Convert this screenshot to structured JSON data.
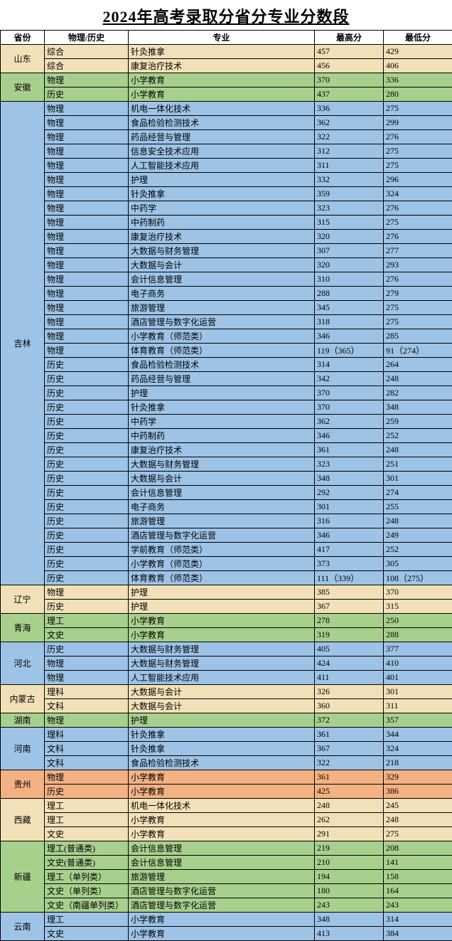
{
  "title": "2024年高考录取分省分专业分数段",
  "headers": {
    "province": "省份",
    "subject": "物理/历史",
    "major": "专业",
    "max": "最高分",
    "min": "最低分"
  },
  "colors": {
    "tan": "#f2e1b8",
    "green": "#a8d08d",
    "blue": "#9dc3e6",
    "orange": "#f4b183"
  },
  "provinces": [
    {
      "name": "山东",
      "color": "tan",
      "rows": [
        {
          "subject": "综合",
          "major": "针灸推拿",
          "max": "457",
          "min": "429"
        },
        {
          "subject": "综合",
          "major": "康复治疗技术",
          "max": "456",
          "min": "406"
        }
      ]
    },
    {
      "name": "安徽",
      "color": "green",
      "rows": [
        {
          "subject": "物理",
          "major": "小学教育",
          "max": "370",
          "min": "336"
        },
        {
          "subject": "历史",
          "major": "小学教育",
          "max": "437",
          "min": "280"
        }
      ]
    },
    {
      "name": "吉林",
      "color": "blue",
      "rows": [
        {
          "subject": "物理",
          "major": "机电一体化技术",
          "max": "336",
          "min": "275"
        },
        {
          "subject": "物理",
          "major": "食品检验检测技术",
          "max": "362",
          "min": "299"
        },
        {
          "subject": "物理",
          "major": "药品经营与管理",
          "max": "322",
          "min": "276"
        },
        {
          "subject": "物理",
          "major": "信息安全技术应用",
          "max": "312",
          "min": "275"
        },
        {
          "subject": "物理",
          "major": "人工智能技术应用",
          "max": "311",
          "min": "275"
        },
        {
          "subject": "物理",
          "major": "护理",
          "max": "332",
          "min": "296"
        },
        {
          "subject": "物理",
          "major": "针灸推拿",
          "max": "359",
          "min": "324"
        },
        {
          "subject": "物理",
          "major": "中药学",
          "max": "323",
          "min": "276"
        },
        {
          "subject": "物理",
          "major": "中药制药",
          "max": "315",
          "min": "275"
        },
        {
          "subject": "物理",
          "major": "康复治疗技术",
          "max": "320",
          "min": "276"
        },
        {
          "subject": "物理",
          "major": "大数据与财务管理",
          "max": "307",
          "min": "277"
        },
        {
          "subject": "物理",
          "major": "大数据与会计",
          "max": "320",
          "min": "293"
        },
        {
          "subject": "物理",
          "major": "会计信息管理",
          "max": "310",
          "min": "276"
        },
        {
          "subject": "物理",
          "major": "电子商务",
          "max": "288",
          "min": "279"
        },
        {
          "subject": "物理",
          "major": "旅游管理",
          "max": "345",
          "min": "275"
        },
        {
          "subject": "物理",
          "major": "酒店管理与数字化运营",
          "max": "318",
          "min": "275"
        },
        {
          "subject": "物理",
          "major": "小学教育（师范类）",
          "max": "346",
          "min": "285"
        },
        {
          "subject": "物理",
          "major": "体育教育（师范类）",
          "max": "119（365）",
          "min": "91（274）"
        },
        {
          "subject": "历史",
          "major": "食品检验检测技术",
          "max": "314",
          "min": "264"
        },
        {
          "subject": "历史",
          "major": "药品经营与管理",
          "max": "342",
          "min": "248"
        },
        {
          "subject": "历史",
          "major": "护理",
          "max": "370",
          "min": "282"
        },
        {
          "subject": "历史",
          "major": "针灸推拿",
          "max": "370",
          "min": "348"
        },
        {
          "subject": "历史",
          "major": "中药学",
          "max": "362",
          "min": "259"
        },
        {
          "subject": "历史",
          "major": "中药制药",
          "max": "346",
          "min": "252"
        },
        {
          "subject": "历史",
          "major": "康复治疗技术",
          "max": "361",
          "min": "248"
        },
        {
          "subject": "历史",
          "major": "大数据与财务管理",
          "max": "323",
          "min": "251"
        },
        {
          "subject": "历史",
          "major": "大数据与会计",
          "max": "348",
          "min": "301"
        },
        {
          "subject": "历史",
          "major": "会计信息管理",
          "max": "292",
          "min": "274"
        },
        {
          "subject": "历史",
          "major": "电子商务",
          "max": "301",
          "min": "255"
        },
        {
          "subject": "历史",
          "major": "旅游管理",
          "max": "316",
          "min": "248"
        },
        {
          "subject": "历史",
          "major": "酒店管理与数字化运营",
          "max": "346",
          "min": "249"
        },
        {
          "subject": "历史",
          "major": "学前教育（师范类）",
          "max": "417",
          "min": "252"
        },
        {
          "subject": "历史",
          "major": "小学教育（师范类）",
          "max": "373",
          "min": "305"
        },
        {
          "subject": "历史",
          "major": "体育教育（师范类）",
          "max": "111（339）",
          "min": "108（275）"
        }
      ]
    },
    {
      "name": "辽宁",
      "color": "tan",
      "rows": [
        {
          "subject": "物理",
          "major": "护理",
          "max": "385",
          "min": "370"
        },
        {
          "subject": "历史",
          "major": "护理",
          "max": "367",
          "min": "315"
        }
      ]
    },
    {
      "name": "青海",
      "color": "green",
      "rows": [
        {
          "subject": "理工",
          "major": "小学教育",
          "max": "278",
          "min": "250"
        },
        {
          "subject": "文史",
          "major": "小学教育",
          "max": "319",
          "min": "288"
        }
      ]
    },
    {
      "name": "河北",
      "color": "blue",
      "rows": [
        {
          "subject": "历史",
          "major": "大数据与财务管理",
          "max": "405",
          "min": "377"
        },
        {
          "subject": "物理",
          "major": "大数据与财务管理",
          "max": "424",
          "min": "410"
        },
        {
          "subject": "物理",
          "major": "人工智能技术应用",
          "max": "411",
          "min": "401"
        }
      ]
    },
    {
      "name": "内蒙古",
      "color": "tan",
      "rows": [
        {
          "subject": "理科",
          "major": "大数据与会计",
          "max": "326",
          "min": "301"
        },
        {
          "subject": "文科",
          "major": "大数据与会计",
          "max": "360",
          "min": "311"
        }
      ]
    },
    {
      "name": "湖南",
      "color": "green",
      "rows": [
        {
          "subject": "物理",
          "major": "护理",
          "max": "372",
          "min": "357"
        }
      ]
    },
    {
      "name": "河南",
      "color": "blue",
      "rows": [
        {
          "subject": "理科",
          "major": "针灸推拿",
          "max": "361",
          "min": "344"
        },
        {
          "subject": "文科",
          "major": "针灸推拿",
          "max": "367",
          "min": "324"
        },
        {
          "subject": "文科",
          "major": "食品检验检测技术",
          "max": "322",
          "min": "218"
        }
      ]
    },
    {
      "name": "贵州",
      "color": "orange",
      "rows": [
        {
          "subject": "物理",
          "major": "小学教育",
          "max": "361",
          "min": "329"
        },
        {
          "subject": "历史",
          "major": "小学教育",
          "max": "425",
          "min": "386"
        }
      ]
    },
    {
      "name": "西藏",
      "color": "tan",
      "rows": [
        {
          "subject": "理工",
          "major": "机电一体化技术",
          "max": "248",
          "min": "245"
        },
        {
          "subject": "理工",
          "major": "小学教育",
          "max": "262",
          "min": "248"
        },
        {
          "subject": "文史",
          "major": "小学教育",
          "max": "291",
          "min": "275"
        }
      ]
    },
    {
      "name": "新疆",
      "color": "green",
      "rows": [
        {
          "subject": "理工(普通类)",
          "major": "会计信息管理",
          "max": "219",
          "min": "208"
        },
        {
          "subject": "文史(普通类)",
          "major": "会计信息管理",
          "max": "210",
          "min": "141"
        },
        {
          "subject": "理工（单列类）",
          "major": "旅游管理",
          "max": "194",
          "min": "158"
        },
        {
          "subject": "文史（单列类）",
          "major": "酒店管理与数字化运营",
          "max": "180",
          "min": "164"
        },
        {
          "subject": "文史（南疆单列类）",
          "major": "酒店管理与数字化运营",
          "max": "243",
          "min": "243"
        }
      ]
    },
    {
      "name": "云南",
      "color": "blue",
      "rows": [
        {
          "subject": "理工",
          "major": "小学教育",
          "max": "348",
          "min": "314"
        },
        {
          "subject": "文史",
          "major": "小学教育",
          "max": "413",
          "min": "384"
        }
      ]
    }
  ]
}
